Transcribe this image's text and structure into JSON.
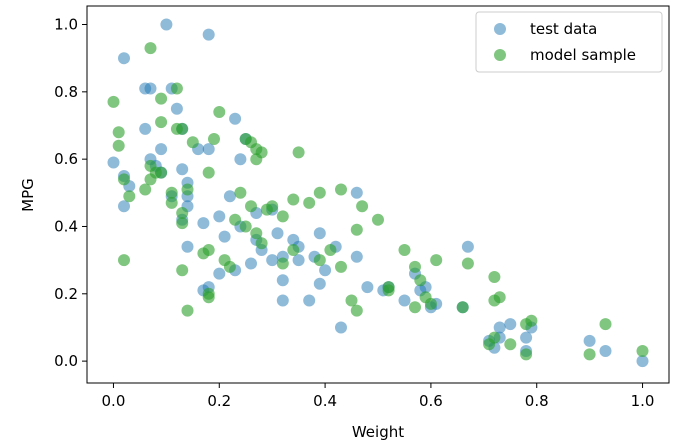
{
  "chart_data": {
    "type": "scatter",
    "title": "",
    "xlabel": "Weight",
    "ylabel": "MPG",
    "xlim": [
      -0.05,
      1.05
    ],
    "ylim": [
      -0.065,
      1.055
    ],
    "xticks": [
      0.0,
      0.2,
      0.4,
      0.6,
      0.8,
      1.0
    ],
    "xtick_labels": [
      "0.0",
      "0.2",
      "0.4",
      "0.6",
      "0.8",
      "1.0"
    ],
    "yticks": [
      0.0,
      0.2,
      0.4,
      0.6,
      0.8,
      1.0
    ],
    "ytick_labels": [
      "0.0",
      "0.2",
      "0.4",
      "0.6",
      "0.8",
      "1.0"
    ],
    "grid": false,
    "legend_position": "upper-right",
    "series": [
      {
        "name": "test data",
        "color": "#1f77b4",
        "alpha": 0.5,
        "points": [
          [
            0.1,
            1.0
          ],
          [
            0.18,
            0.97
          ],
          [
            0.02,
            0.9
          ],
          [
            0.06,
            0.81
          ],
          [
            0.07,
            0.81
          ],
          [
            0.11,
            0.81
          ],
          [
            0.12,
            0.75
          ],
          [
            0.23,
            0.72
          ],
          [
            0.06,
            0.69
          ],
          [
            0.13,
            0.69
          ],
          [
            0.09,
            0.63
          ],
          [
            0.18,
            0.63
          ],
          [
            0.16,
            0.63
          ],
          [
            0.25,
            0.66
          ],
          [
            0.24,
            0.6
          ],
          [
            0.0,
            0.59
          ],
          [
            0.07,
            0.6
          ],
          [
            0.08,
            0.58
          ],
          [
            0.09,
            0.56
          ],
          [
            0.13,
            0.57
          ],
          [
            0.02,
            0.55
          ],
          [
            0.03,
            0.52
          ],
          [
            0.14,
            0.53
          ],
          [
            0.02,
            0.46
          ],
          [
            0.11,
            0.49
          ],
          [
            0.14,
            0.49
          ],
          [
            0.14,
            0.46
          ],
          [
            0.22,
            0.49
          ],
          [
            0.3,
            0.45
          ],
          [
            0.27,
            0.44
          ],
          [
            0.13,
            0.42
          ],
          [
            0.17,
            0.41
          ],
          [
            0.2,
            0.43
          ],
          [
            0.24,
            0.4
          ],
          [
            0.21,
            0.37
          ],
          [
            0.27,
            0.36
          ],
          [
            0.31,
            0.38
          ],
          [
            0.34,
            0.36
          ],
          [
            0.35,
            0.34
          ],
          [
            0.39,
            0.38
          ],
          [
            0.42,
            0.34
          ],
          [
            0.14,
            0.34
          ],
          [
            0.32,
            0.31
          ],
          [
            0.28,
            0.33
          ],
          [
            0.26,
            0.29
          ],
          [
            0.38,
            0.31
          ],
          [
            0.4,
            0.27
          ],
          [
            0.35,
            0.3
          ],
          [
            0.3,
            0.3
          ],
          [
            0.32,
            0.24
          ],
          [
            0.23,
            0.27
          ],
          [
            0.2,
            0.26
          ],
          [
            0.18,
            0.22
          ],
          [
            0.17,
            0.21
          ],
          [
            0.32,
            0.18
          ],
          [
            0.37,
            0.18
          ],
          [
            0.39,
            0.23
          ],
          [
            0.46,
            0.5
          ],
          [
            0.46,
            0.31
          ],
          [
            0.43,
            0.1
          ],
          [
            0.48,
            0.22
          ],
          [
            0.51,
            0.21
          ],
          [
            0.52,
            0.22
          ],
          [
            0.55,
            0.18
          ],
          [
            0.57,
            0.26
          ],
          [
            0.59,
            0.22
          ],
          [
            0.58,
            0.21
          ],
          [
            0.6,
            0.16
          ],
          [
            0.61,
            0.17
          ],
          [
            0.66,
            0.16
          ],
          [
            0.67,
            0.34
          ],
          [
            0.71,
            0.06
          ],
          [
            0.72,
            0.04
          ],
          [
            0.73,
            0.1
          ],
          [
            0.73,
            0.07
          ],
          [
            0.75,
            0.11
          ],
          [
            0.78,
            0.07
          ],
          [
            0.78,
            0.03
          ],
          [
            0.79,
            0.1
          ],
          [
            0.9,
            0.06
          ],
          [
            0.93,
            0.03
          ],
          [
            1.0,
            0.0
          ]
        ]
      },
      {
        "name": "model sample",
        "color": "#2ca02c",
        "alpha": 0.6,
        "points": [
          [
            0.07,
            0.93
          ],
          [
            0.0,
            0.77
          ],
          [
            0.12,
            0.81
          ],
          [
            0.09,
            0.78
          ],
          [
            0.2,
            0.74
          ],
          [
            0.25,
            0.66
          ],
          [
            0.01,
            0.68
          ],
          [
            0.09,
            0.71
          ],
          [
            0.12,
            0.69
          ],
          [
            0.13,
            0.69
          ],
          [
            0.15,
            0.65
          ],
          [
            0.19,
            0.66
          ],
          [
            0.26,
            0.65
          ],
          [
            0.27,
            0.63
          ],
          [
            0.28,
            0.62
          ],
          [
            0.27,
            0.6
          ],
          [
            0.01,
            0.64
          ],
          [
            0.07,
            0.58
          ],
          [
            0.09,
            0.56
          ],
          [
            0.08,
            0.56
          ],
          [
            0.35,
            0.62
          ],
          [
            0.02,
            0.54
          ],
          [
            0.06,
            0.51
          ],
          [
            0.07,
            0.54
          ],
          [
            0.11,
            0.5
          ],
          [
            0.11,
            0.47
          ],
          [
            0.14,
            0.51
          ],
          [
            0.03,
            0.49
          ],
          [
            0.18,
            0.56
          ],
          [
            0.24,
            0.5
          ],
          [
            0.26,
            0.46
          ],
          [
            0.29,
            0.45
          ],
          [
            0.3,
            0.46
          ],
          [
            0.34,
            0.48
          ],
          [
            0.37,
            0.47
          ],
          [
            0.39,
            0.5
          ],
          [
            0.43,
            0.51
          ],
          [
            0.47,
            0.46
          ],
          [
            0.5,
            0.42
          ],
          [
            0.32,
            0.43
          ],
          [
            0.13,
            0.44
          ],
          [
            0.13,
            0.41
          ],
          [
            0.23,
            0.42
          ],
          [
            0.25,
            0.4
          ],
          [
            0.27,
            0.38
          ],
          [
            0.28,
            0.35
          ],
          [
            0.46,
            0.39
          ],
          [
            0.41,
            0.33
          ],
          [
            0.39,
            0.3
          ],
          [
            0.43,
            0.28
          ],
          [
            0.34,
            0.33
          ],
          [
            0.32,
            0.29
          ],
          [
            0.55,
            0.33
          ],
          [
            0.57,
            0.28
          ],
          [
            0.02,
            0.3
          ],
          [
            0.13,
            0.27
          ],
          [
            0.18,
            0.33
          ],
          [
            0.17,
            0.32
          ],
          [
            0.21,
            0.3
          ],
          [
            0.22,
            0.28
          ],
          [
            0.61,
            0.3
          ],
          [
            0.67,
            0.29
          ],
          [
            0.72,
            0.25
          ],
          [
            0.52,
            0.22
          ],
          [
            0.52,
            0.21
          ],
          [
            0.58,
            0.24
          ],
          [
            0.59,
            0.19
          ],
          [
            0.6,
            0.17
          ],
          [
            0.57,
            0.16
          ],
          [
            0.66,
            0.16
          ],
          [
            0.72,
            0.18
          ],
          [
            0.73,
            0.19
          ],
          [
            0.14,
            0.15
          ],
          [
            0.18,
            0.2
          ],
          [
            0.18,
            0.19
          ],
          [
            0.45,
            0.18
          ],
          [
            0.46,
            0.15
          ],
          [
            0.79,
            0.12
          ],
          [
            0.78,
            0.11
          ],
          [
            0.72,
            0.07
          ],
          [
            0.75,
            0.05
          ],
          [
            0.78,
            0.02
          ],
          [
            0.71,
            0.05
          ],
          [
            0.93,
            0.11
          ],
          [
            0.9,
            0.02
          ],
          [
            1.0,
            0.03
          ]
        ]
      }
    ]
  }
}
